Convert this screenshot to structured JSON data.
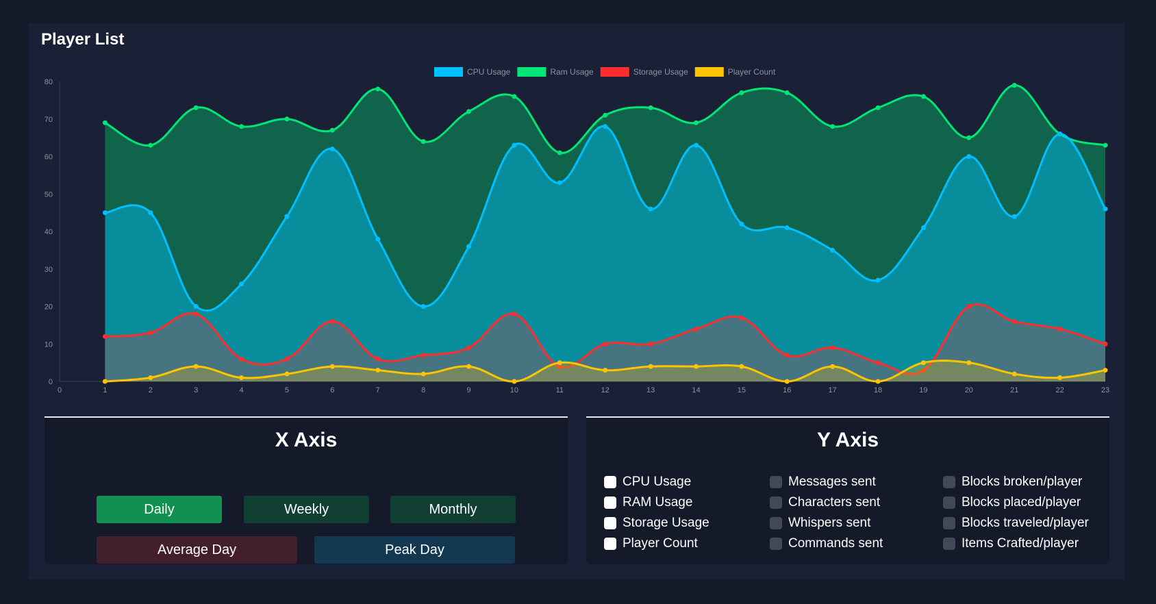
{
  "panel": {
    "title": "Player List"
  },
  "chart_data": {
    "type": "area",
    "x": [
      0,
      1,
      2,
      3,
      4,
      5,
      6,
      7,
      8,
      9,
      10,
      11,
      12,
      13,
      14,
      15,
      16,
      17,
      18,
      19,
      20,
      21,
      22,
      23
    ],
    "xlim": [
      0,
      23
    ],
    "ylim": [
      0,
      80
    ],
    "yticks": [
      0,
      10,
      20,
      30,
      40,
      50,
      60,
      70,
      80
    ],
    "legend_position": "top-center",
    "series": [
      {
        "name": "Ram Usage",
        "color": "#00e676",
        "fill": "rgba(0,230,118,0.35)",
        "values": [
          null,
          69,
          63,
          73,
          68,
          70,
          67,
          78,
          64,
          72,
          76,
          61,
          71,
          73,
          69,
          77,
          77,
          68,
          73,
          76,
          65,
          79,
          66,
          63
        ]
      },
      {
        "name": "CPU Usage",
        "color": "#00bfff",
        "fill": "rgba(0,191,255,0.45)",
        "values": [
          null,
          45,
          45,
          20,
          26,
          44,
          62,
          38,
          20,
          36,
          63,
          53,
          68,
          46,
          63,
          42,
          41,
          35,
          27,
          41,
          60,
          44,
          66,
          46
        ]
      },
      {
        "name": "Storage Usage",
        "color": "#ff2d2d",
        "fill": "rgba(255,45,45,0.25)",
        "values": [
          null,
          12,
          13,
          18,
          6,
          6,
          16,
          6,
          7,
          9,
          18,
          4,
          10,
          10,
          14,
          17,
          7,
          9,
          5,
          3,
          20,
          16,
          14,
          10
        ]
      },
      {
        "name": "Player Count",
        "color": "#ffc400",
        "fill": "rgba(255,196,0,0.25)",
        "values": [
          null,
          0,
          1,
          4,
          1,
          2,
          4,
          3,
          2,
          4,
          0,
          5,
          3,
          4,
          4,
          4,
          0,
          4,
          0,
          5,
          5,
          2,
          1,
          3
        ]
      }
    ],
    "legend_order": [
      "CPU Usage",
      "Ram Usage",
      "Storage Usage",
      "Player Count"
    ]
  },
  "x_axis": {
    "title": "X Axis",
    "buttons": [
      {
        "label": "Daily",
        "color": "#10914f"
      },
      {
        "label": "Weekly",
        "color": "#123f34"
      },
      {
        "label": "Monthly",
        "color": "#123f34"
      },
      {
        "label": "Average Day",
        "color": "#431f2d"
      },
      {
        "label": "Peak Day",
        "color": "#123852"
      }
    ]
  },
  "y_axis": {
    "title": "Y Axis",
    "options": [
      {
        "label": "CPU Usage",
        "checked": true
      },
      {
        "label": "RAM Usage",
        "checked": true
      },
      {
        "label": "Storage Usage",
        "checked": true
      },
      {
        "label": "Player Count",
        "checked": true
      },
      {
        "label": "Messages sent",
        "checked": false
      },
      {
        "label": "Characters sent",
        "checked": false
      },
      {
        "label": "Whispers sent",
        "checked": false
      },
      {
        "label": "Commands sent",
        "checked": false
      },
      {
        "label": "Blocks broken/player",
        "checked": false
      },
      {
        "label": "Blocks placed/player",
        "checked": false
      },
      {
        "label": "Blocks traveled/player",
        "checked": false
      },
      {
        "label": "Items Crafted/player",
        "checked": false
      }
    ]
  }
}
